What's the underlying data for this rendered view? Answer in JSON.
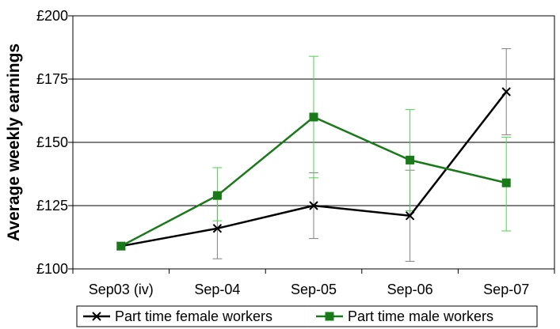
{
  "chart_data": {
    "type": "line",
    "ylabel": "Average weekly earnings",
    "xlabel": "",
    "categories": [
      "Sep03 (iv)",
      "Sep-04",
      "Sep-05",
      "Sep-06",
      "Sep-07"
    ],
    "ylim": [
      100,
      200
    ],
    "yticks": [
      "£100",
      "£125",
      "£150",
      "£175",
      "£200"
    ],
    "ytick_values": [
      100,
      125,
      150,
      175,
      200
    ],
    "grid": "horizontal",
    "legend_position": "bottom",
    "series": [
      {
        "name": "Part time female workers",
        "marker": "x",
        "color": "#000000",
        "error_color": "#808080",
        "values": [
          109,
          116,
          125,
          121,
          170
        ],
        "error_low": [
          null,
          104,
          112,
          103,
          153
        ],
        "error_high": [
          null,
          129,
          138,
          139,
          187
        ]
      },
      {
        "name": "Part time male workers",
        "marker": "square",
        "color": "#1a7a1a",
        "error_color": "#4fd24f",
        "values": [
          109,
          129,
          160,
          143,
          134
        ],
        "error_low": [
          null,
          119,
          136,
          123,
          115
        ],
        "error_high": [
          null,
          140,
          184,
          163,
          152
        ]
      }
    ]
  }
}
